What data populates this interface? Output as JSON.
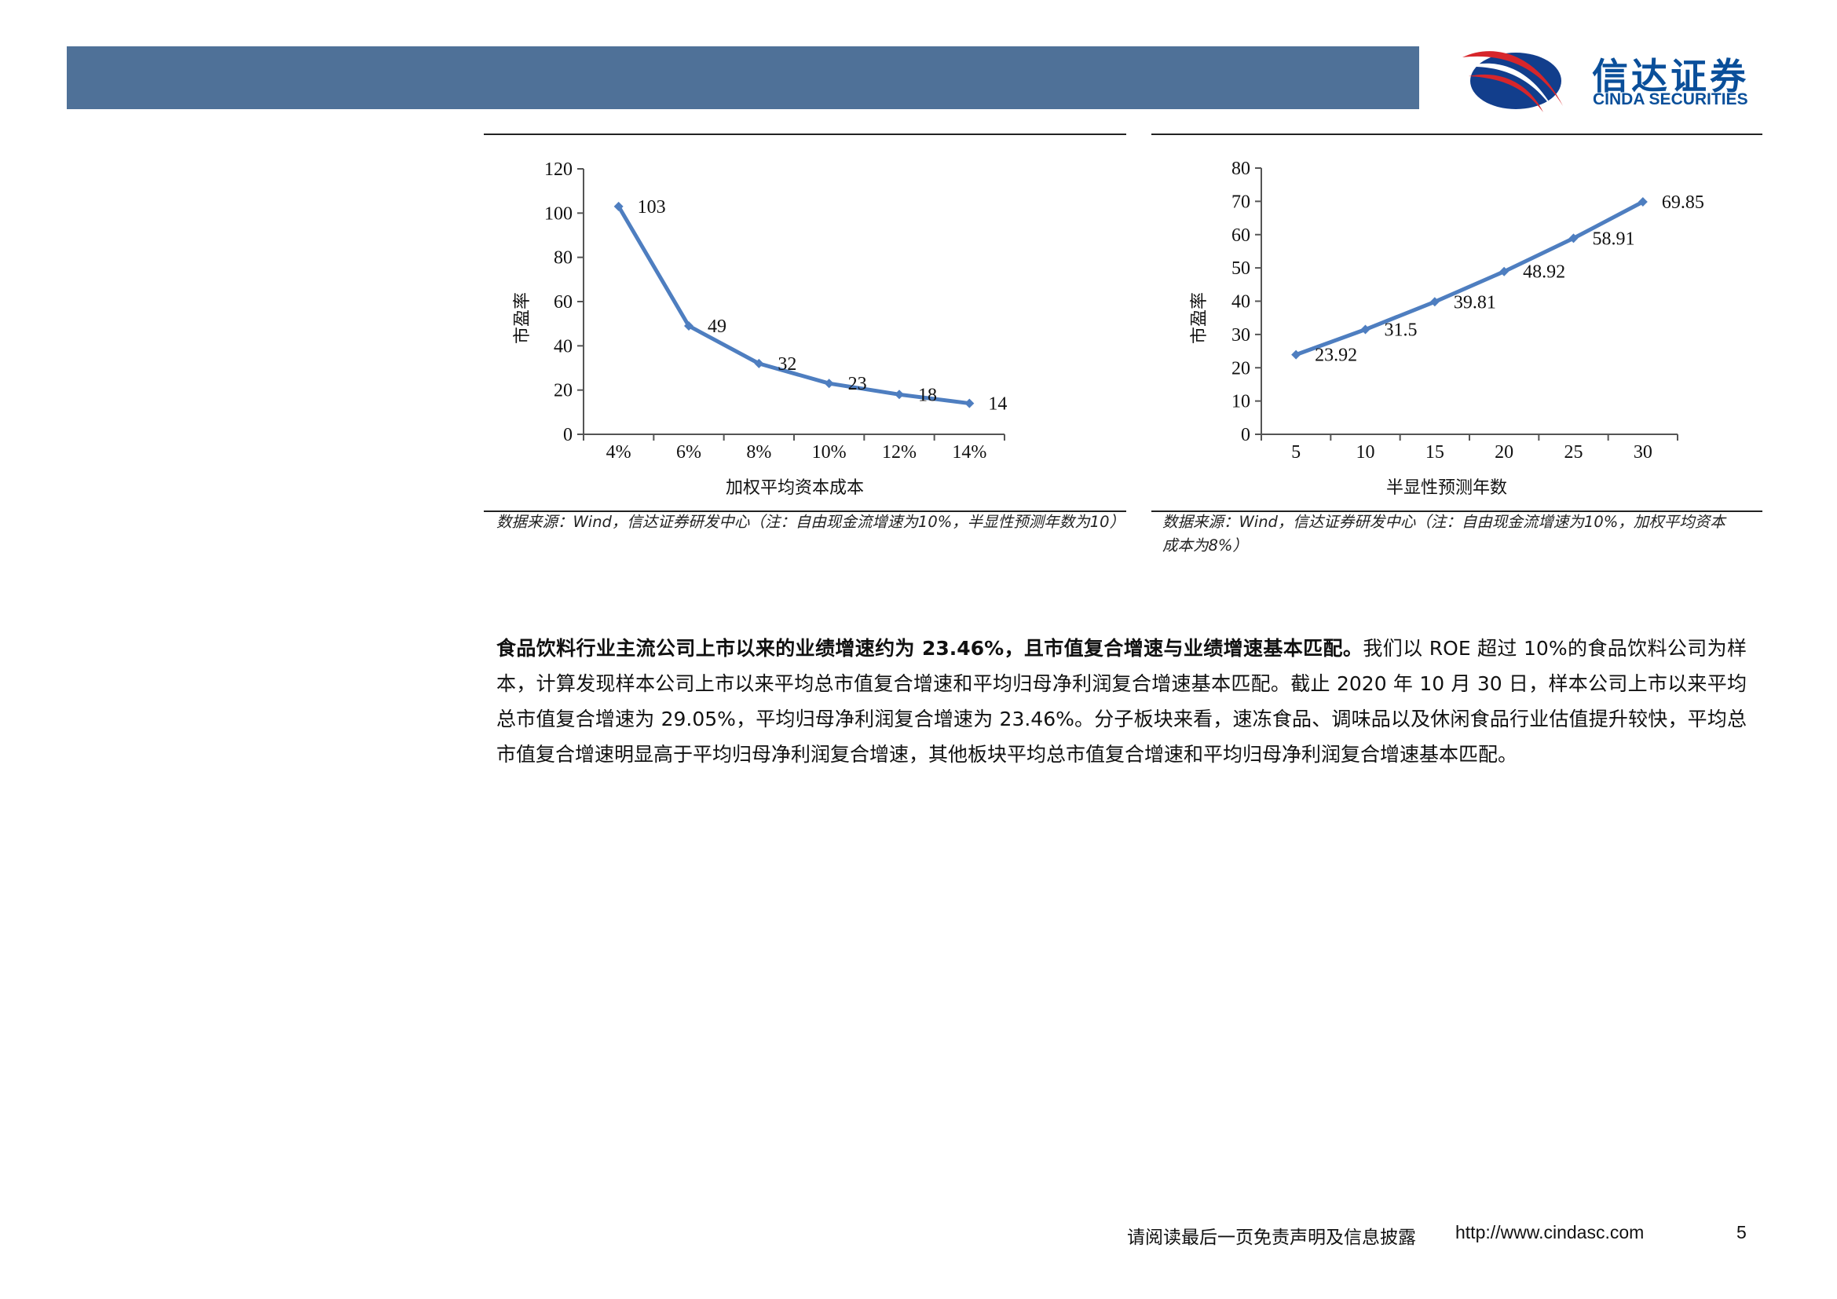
{
  "header": {
    "logo_cn": "信达证券",
    "logo_en": "CINDA SECURITIES"
  },
  "charts": {
    "left": {
      "ylabel": "市盈率",
      "xlabel": "加权平均资本成本",
      "source": "数据来源：Wind，信达证券研发中心（注：自由现金流增速为10%，半显性预测年数为10）"
    },
    "right": {
      "ylabel": "市盈率",
      "xlabel": "半显性预测年数",
      "source": "数据来源：Wind，信达证券研发中心（注：自由现金流增速为10%，加权平均资本成本为8%）"
    }
  },
  "chart_data": [
    {
      "type": "line",
      "categories": [
        "4%",
        "6%",
        "8%",
        "10%",
        "12%",
        "14%"
      ],
      "values": [
        103,
        49,
        32,
        23,
        18,
        14
      ],
      "data_labels": [
        "103",
        "49",
        "32",
        "23",
        "18",
        "14"
      ],
      "yticks": [
        "0",
        "20",
        "40",
        "60",
        "80",
        "100",
        "120"
      ],
      "ylim": [
        0,
        120
      ],
      "xlabel": "加权平均资本成本",
      "ylabel": "市盈率",
      "grid": false,
      "color": "#4e7ec0"
    },
    {
      "type": "line",
      "categories": [
        "5",
        "10",
        "15",
        "20",
        "25",
        "30"
      ],
      "values": [
        23.92,
        31.5,
        39.81,
        48.92,
        58.91,
        69.85
      ],
      "data_labels": [
        "23.92",
        "31.5",
        "39.81",
        "48.92",
        "58.91",
        "69.85"
      ],
      "yticks": [
        "0",
        "10",
        "20",
        "30",
        "40",
        "50",
        "60",
        "70",
        "80"
      ],
      "ylim": [
        0,
        80
      ],
      "xlabel": "半显性预测年数",
      "ylabel": "市盈率",
      "grid": false,
      "color": "#4e7ec0"
    }
  ],
  "body": {
    "bold_lead": "食品饮料行业主流公司上市以来的业绩增速约为 23.46%，且市值复合增速与业绩增速基本匹配。",
    "text": "我们以 ROE 超过 10%的食品饮料公司为样本，计算发现样本公司上市以来平均总市值复合增速和平均归母净利润复合增速基本匹配。截止 2020 年 10 月 30 日，样本公司上市以来平均总市值复合增速为 29.05%，平均归母净利润复合增速为 23.46%。分子板块来看，速冻食品、调味品以及休闲食品行业估值提升较快，平均总市值复合增速明显高于平均归母净利润复合增速，其他板块平均总市值复合增速和平均归母净利润复合增速基本匹配。"
  },
  "footer": {
    "disclaimer": "请阅读最后一页免责声明及信息披露",
    "url": "http://www.cindasc.com",
    "page_number": "5"
  }
}
